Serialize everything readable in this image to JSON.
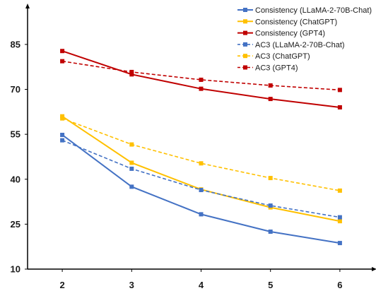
{
  "chart_data": {
    "type": "line",
    "title": "",
    "xlabel": "",
    "ylabel": "",
    "x": [
      2,
      3,
      4,
      5,
      6
    ],
    "xlim": [
      1.5,
      6.5
    ],
    "ylim": [
      10,
      97
    ],
    "yticks": [
      10,
      25,
      40,
      55,
      70,
      85
    ],
    "grid": false,
    "legend_position": "top-right",
    "series": [
      {
        "name": "Consistency (LLaMA-2-70B-Chat)",
        "values": [
          54.8,
          37.5,
          28.3,
          22.5,
          18.7
        ],
        "color": "#4472C4",
        "dashed": false
      },
      {
        "name": "Consistency (ChatGPT)",
        "values": [
          61.0,
          45.5,
          36.6,
          30.6,
          26.0
        ],
        "color": "#FFC000",
        "dashed": false
      },
      {
        "name": "Consistency (GPT4)",
        "values": [
          82.8,
          75.0,
          70.2,
          66.8,
          64.0
        ],
        "color": "#C00000",
        "dashed": false
      },
      {
        "name": "AC3 (LLaMA-2-70B-Chat)",
        "values": [
          53.0,
          43.5,
          36.4,
          31.2,
          27.3
        ],
        "color": "#4472C4",
        "dashed": true
      },
      {
        "name": "AC3 (ChatGPT)",
        "values": [
          60.3,
          51.6,
          45.3,
          40.4,
          36.2
        ],
        "color": "#FFC000",
        "dashed": true
      },
      {
        "name": "AC3 (GPT4)",
        "values": [
          79.4,
          75.8,
          73.2,
          71.3,
          69.8
        ],
        "color": "#C00000",
        "dashed": true
      }
    ]
  }
}
